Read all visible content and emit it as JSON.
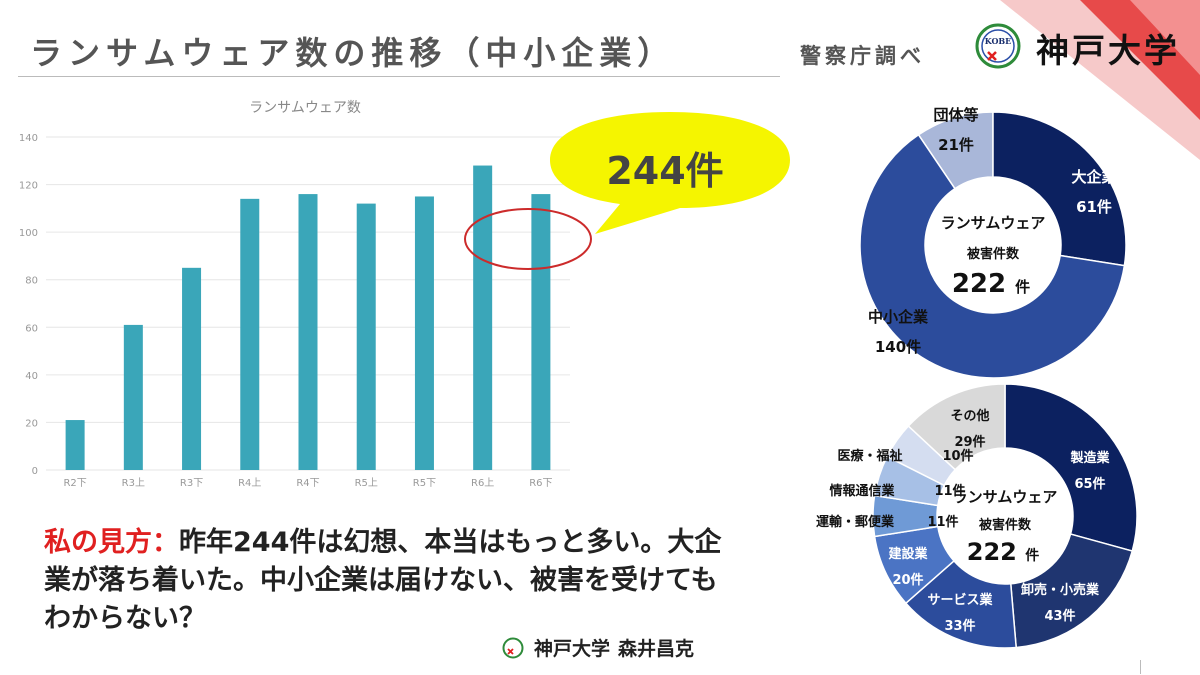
{
  "header": {
    "title": "ランサムウェア数の推移（中小企業）",
    "source": "警察庁調べ",
    "university_name": "神戸大学",
    "logo_text": "KOBE"
  },
  "callout": {
    "text": "244件"
  },
  "opinion": {
    "label": "私の見方：",
    "body": "昨年244件は幻想、本当はもっと多い。大企業が落ち着いた。中小企業は届けない、被害を受けてもわからない？"
  },
  "author": {
    "university": "神戸大学",
    "name": "森井昌克"
  },
  "colors": {
    "bar": "#3aa6b9",
    "callout_fill": "#f5f500",
    "ellipse": "#cc2b2b",
    "donut_dark": "#0c2160",
    "donut_mid": "#2c4c9c",
    "donut_light": "#a9b7d9",
    "accent_red": "#e02020"
  },
  "chart_data": [
    {
      "type": "bar",
      "title": "ランサムウェア数",
      "categories": [
        "R2下",
        "R3上",
        "R3下",
        "R4上",
        "R4下",
        "R5上",
        "R5下",
        "R6上",
        "R6下"
      ],
      "values": [
        21,
        61,
        85,
        114,
        116,
        112,
        115,
        128,
        116
      ],
      "ylim": [
        0,
        140
      ],
      "yticks": [
        0,
        20,
        40,
        60,
        80,
        100,
        120,
        140
      ],
      "grid": true
    },
    {
      "type": "pie",
      "donut": true,
      "center": {
        "line1": "ランサムウェア",
        "line2": "被害件数",
        "total": "222",
        "unit": "件"
      },
      "slices": [
        {
          "label": "大企業",
          "value": 61,
          "value_text": "61件",
          "color": "#0c2160",
          "text_color": "#ffffff"
        },
        {
          "label": "中小企業",
          "value": 140,
          "value_text": "140件",
          "color": "#2c4c9c",
          "text_color": "#111111"
        },
        {
          "label": "団体等",
          "value": 21,
          "value_text": "21件",
          "color": "#a9b7d9",
          "text_color": "#111111"
        }
      ]
    },
    {
      "type": "pie",
      "donut": true,
      "center": {
        "line1": "ランサムウェア",
        "line2": "被害件数",
        "total": "222",
        "unit": "件"
      },
      "slices": [
        {
          "label": "製造業",
          "value": 65,
          "value_text": "65件",
          "color": "#0c2160",
          "text_color": "#ffffff"
        },
        {
          "label": "卸売・小売業",
          "value": 43,
          "value_text": "43件",
          "color": "#1f3570",
          "text_color": "#ffffff"
        },
        {
          "label": "サービス業",
          "value": 33,
          "value_text": "33件",
          "color": "#2c4c9c",
          "text_color": "#ffffff"
        },
        {
          "label": "建設業",
          "value": 20,
          "value_text": "20件",
          "color": "#4b74c4",
          "text_color": "#ffffff"
        },
        {
          "label": "運輸・郵便業",
          "value": 11,
          "value_text": "11件",
          "color": "#6f9ad6",
          "text_color": "#111111"
        },
        {
          "label": "情報通信業",
          "value": 11,
          "value_text": "11件",
          "color": "#a7c0e6",
          "text_color": "#111111"
        },
        {
          "label": "医療・福祉",
          "value": 10,
          "value_text": "10件",
          "color": "#d4ddf0",
          "text_color": "#111111"
        },
        {
          "label": "その他",
          "value": 29,
          "value_text": "29件",
          "color": "#d9d9d9",
          "text_color": "#111111"
        }
      ]
    }
  ]
}
